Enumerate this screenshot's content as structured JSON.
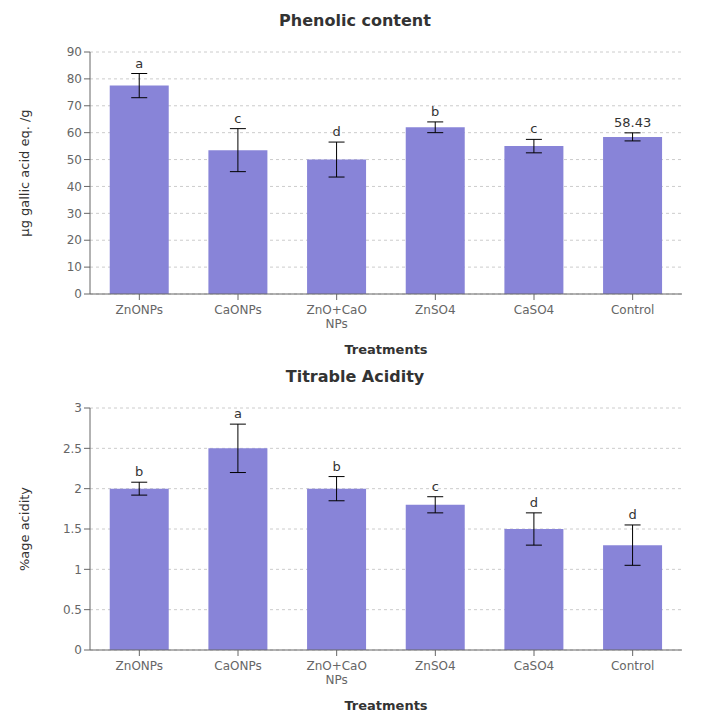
{
  "chart_data": [
    {
      "type": "bar",
      "title": "Phenolic content",
      "categories": [
        "ZnONPs",
        "CaONPs",
        "ZnO+CaO\nNPs",
        "ZnSO4",
        "CaSO4",
        "Control"
      ],
      "values": [
        77.5,
        53.5,
        50.0,
        62.0,
        55.0,
        58.43
      ],
      "errors": [
        4.5,
        8.0,
        6.5,
        2.0,
        2.5,
        1.5
      ],
      "annotations": [
        "a",
        "c",
        "d",
        "b",
        "c",
        "58.43"
      ],
      "ylabel": "µg gallic acid eq. /g",
      "xlabel": "Treatments",
      "ylim": [
        0,
        90
      ],
      "yticks": [
        0,
        10,
        20,
        30,
        40,
        50,
        60,
        70,
        80,
        90
      ],
      "grid": true,
      "color": "#8884d8"
    },
    {
      "type": "bar",
      "title": "Titrable Acidity",
      "categories": [
        "ZnONPs",
        "CaONPs",
        "ZnO+CaO\nNPs",
        "ZnSO4",
        "CaSO4",
        "Control"
      ],
      "values": [
        2.0,
        2.5,
        2.0,
        1.8,
        1.5,
        1.3
      ],
      "errors": [
        0.08,
        0.3,
        0.15,
        0.1,
        0.2,
        0.25
      ],
      "annotations": [
        "b",
        "a",
        "b",
        "c",
        "d",
        "d"
      ],
      "ylabel": "%age acidity",
      "xlabel": "Treatments",
      "ylim": [
        0,
        3
      ],
      "yticks": [
        0,
        0.5,
        1.0,
        1.5,
        2.0,
        2.5,
        3.0
      ],
      "grid": true,
      "color": "#8884d8"
    }
  ]
}
